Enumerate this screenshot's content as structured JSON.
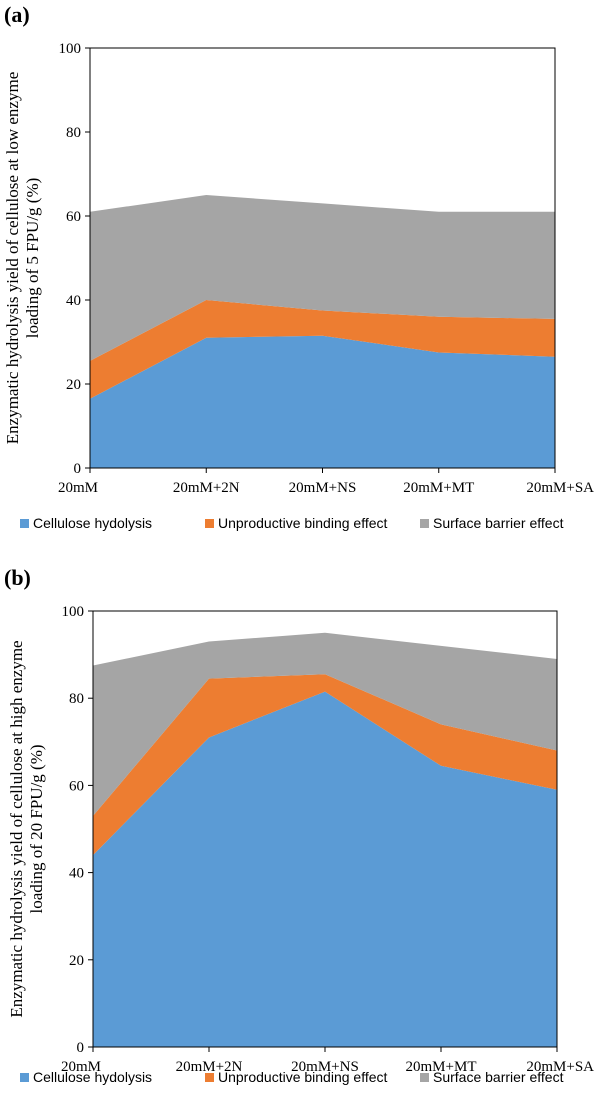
{
  "chart_data": [
    {
      "type": "area",
      "stacked": true,
      "panel_label": "(a)",
      "ylabel_line1": "Enzymatic hydrolysis yield of cellulose at low enzyme",
      "ylabel_line2": "loading of 5 FPU/g (%)",
      "categories": [
        "20mM",
        "20mM+2N",
        "20mM+NS",
        "20mM+MT",
        "20mM+SA"
      ],
      "ylim": [
        0,
        100
      ],
      "yticks": [
        "0",
        "20",
        "40",
        "60",
        "80",
        "100"
      ],
      "grid": false,
      "legend_position": "bottom",
      "series": [
        {
          "name": "Cellulose hydolysis",
          "color": "#5b9bd5",
          "values": [
            16.5,
            31,
            31.5,
            27.5,
            26.5
          ]
        },
        {
          "name": "Unproductive binding effect",
          "color": "#ed7d31",
          "values": [
            9,
            9,
            6,
            8.5,
            9
          ]
        },
        {
          "name": "Surface barrier effect",
          "color": "#a5a5a5",
          "values": [
            35.5,
            25,
            25.5,
            25,
            25.5
          ]
        }
      ]
    },
    {
      "type": "area",
      "stacked": true,
      "panel_label": "(b)",
      "ylabel_line1": "Enzymatic hydrolysis yield of cellulose at high enzyme",
      "ylabel_line2": "loading of 20 FPU/g (%)",
      "categories": [
        "20mM",
        "20mM+2N",
        "20mM+NS",
        "20mM+MT",
        "20mM+SA"
      ],
      "ylim": [
        0,
        100
      ],
      "yticks": [
        "0",
        "20",
        "40",
        "60",
        "80",
        "100"
      ],
      "grid": false,
      "legend_position": "bottom",
      "series": [
        {
          "name": "Cellulose hydolysis",
          "color": "#5b9bd5",
          "values": [
            44,
            71,
            81.5,
            64.5,
            59
          ]
        },
        {
          "name": "Unproductive binding effect",
          "color": "#ed7d31",
          "values": [
            9,
            13.5,
            4,
            9.5,
            9
          ]
        },
        {
          "name": "Surface barrier effect",
          "color": "#a5a5a5",
          "values": [
            34.5,
            8.5,
            9.5,
            18,
            21
          ]
        }
      ]
    }
  ]
}
